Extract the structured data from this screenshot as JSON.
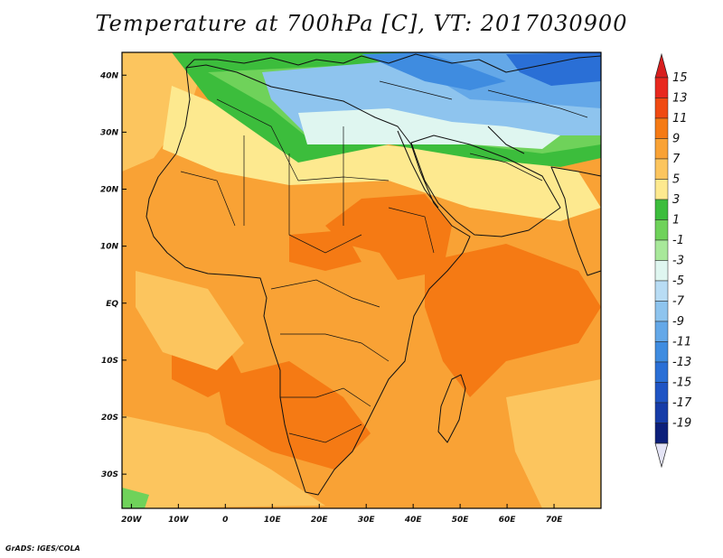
{
  "title": "Temperature at 700hPa [C], VT: 2017030900",
  "credit": "GrADS: IGES/COLA",
  "map": {
    "projection": "lat-lon",
    "lon_range": [
      -22,
      80
    ],
    "lat_range": [
      -36,
      44
    ],
    "lat_ticks": [
      {
        "value": 40,
        "label": "40N"
      },
      {
        "value": 30,
        "label": "30N"
      },
      {
        "value": 20,
        "label": "20N"
      },
      {
        "value": 10,
        "label": "10N"
      },
      {
        "value": 0,
        "label": "EQ"
      },
      {
        "value": -10,
        "label": "10S"
      },
      {
        "value": -20,
        "label": "20S"
      },
      {
        "value": -30,
        "label": "30S"
      }
    ],
    "lon_ticks": [
      {
        "value": -20,
        "label": "20W"
      },
      {
        "value": -10,
        "label": "10W"
      },
      {
        "value": 0,
        "label": "0"
      },
      {
        "value": 10,
        "label": "10E"
      },
      {
        "value": 20,
        "label": "20E"
      },
      {
        "value": 30,
        "label": "30E"
      },
      {
        "value": 40,
        "label": "40E"
      },
      {
        "value": 50,
        "label": "50E"
      },
      {
        "value": 60,
        "label": "60E"
      },
      {
        "value": 70,
        "label": "70E"
      }
    ]
  },
  "colorbar": {
    "levels": [
      {
        "label": "15",
        "color": "#e8281e"
      },
      {
        "label": "13",
        "color": "#f04a12"
      },
      {
        "label": "11",
        "color": "#f57a14"
      },
      {
        "label": "9",
        "color": "#f9a235"
      },
      {
        "label": "7",
        "color": "#fcc55e"
      },
      {
        "label": "5",
        "color": "#fde98f"
      },
      {
        "label": "3",
        "color": "#3cbd3c"
      },
      {
        "label": "1",
        "color": "#6fd25a"
      },
      {
        "label": "-1",
        "color": "#a8e89a"
      },
      {
        "label": "-3",
        "color": "#dff6f0"
      },
      {
        "label": "-5",
        "color": "#b8dcf4"
      },
      {
        "label": "-7",
        "color": "#8ec4ee"
      },
      {
        "label": "-9",
        "color": "#64a8e8"
      },
      {
        "label": "-11",
        "color": "#3f8ce0"
      },
      {
        "label": "-13",
        "color": "#2a6fd6"
      },
      {
        "label": "-15",
        "color": "#1f54c4"
      },
      {
        "label": "-17",
        "color": "#163ca8"
      },
      {
        "label": "-19",
        "color": "#0c1f7a"
      }
    ],
    "top_color": "#d81e1e",
    "bottom_color": "#e4e4f6"
  },
  "fields": {
    "base_color": "#f9a235",
    "regions": [
      {
        "name": "north-atlantic-warm",
        "color": "#fcc55e"
      },
      {
        "name": "sahara-pale",
        "color": "#fde98f"
      },
      {
        "name": "north-green",
        "color": "#3cbd3c"
      },
      {
        "name": "north-lightgreen",
        "color": "#6fd25a"
      },
      {
        "name": "mediterranean-cold",
        "color": "#8ec4ee"
      },
      {
        "name": "mideast-cold",
        "color": "#64a8e8"
      },
      {
        "name": "turkey-cold",
        "color": "#3f8ce0"
      },
      {
        "name": "caspian-coldest",
        "color": "#2a6fd6"
      },
      {
        "name": "ne-cold-pale",
        "color": "#dff6f0"
      },
      {
        "name": "ethiopia-warm",
        "color": "#f57a14"
      },
      {
        "name": "sudan-warm",
        "color": "#f57a14"
      },
      {
        "name": "indian-ocean-warm",
        "color": "#f57a14"
      },
      {
        "name": "southern-africa-warm",
        "color": "#f57a14"
      },
      {
        "name": "angola-warm",
        "color": "#f57a14"
      },
      {
        "name": "west-africa-cool",
        "color": "#fcc55e"
      },
      {
        "name": "south-atlantic-cool",
        "color": "#fcc55e"
      },
      {
        "name": "southwest-green",
        "color": "#6fd25a"
      },
      {
        "name": "east-indian-cool",
        "color": "#fcc55e"
      }
    ]
  }
}
